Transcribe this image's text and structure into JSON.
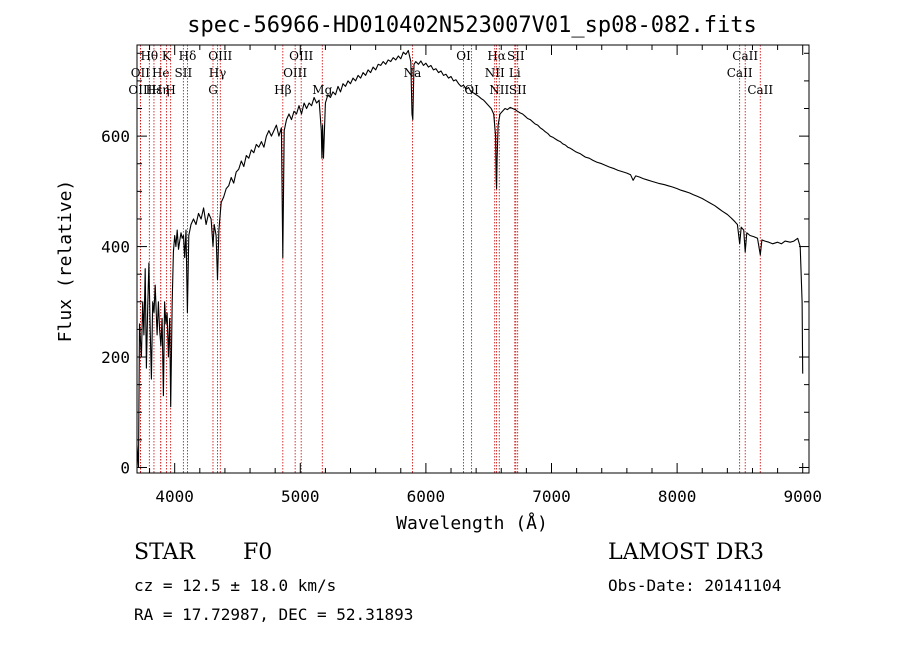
{
  "chart_data": {
    "type": "line",
    "title": "spec-56966-HD010402N523007V01_sp08-082.fits",
    "xlabel": "Wavelength (Å)",
    "ylabel": "Flux (relative)",
    "xlim": [
      3700,
      9050
    ],
    "ylim": [
      -10,
      765
    ],
    "x_ticks": [
      {
        "value": 4000,
        "label": "4000"
      },
      {
        "value": 5000,
        "label": "5000"
      },
      {
        "value": 6000,
        "label": "6000"
      },
      {
        "value": 7000,
        "label": "7000"
      },
      {
        "value": 8000,
        "label": "8000"
      },
      {
        "value": 9000,
        "label": "9000"
      }
    ],
    "y_ticks": [
      {
        "value": 0,
        "label": "0"
      },
      {
        "value": 200,
        "label": "200"
      },
      {
        "value": 400,
        "label": "400"
      },
      {
        "value": 600,
        "label": "600"
      }
    ],
    "grid": false,
    "line_color": "#000000",
    "marker_color": "#cc0000",
    "series": [
      {
        "values": [
          [
            3700,
            40
          ],
          [
            3712,
            0
          ],
          [
            3720,
            260
          ],
          [
            3735,
            200
          ],
          [
            3745,
            300
          ],
          [
            3755,
            240
          ],
          [
            3765,
            360
          ],
          [
            3775,
            180
          ],
          [
            3785,
            290
          ],
          [
            3795,
            370
          ],
          [
            3805,
            250
          ],
          [
            3815,
            160
          ],
          [
            3825,
            300
          ],
          [
            3835,
            280
          ],
          [
            3845,
            330
          ],
          [
            3860,
            240
          ],
          [
            3870,
            300
          ],
          [
            3880,
            250
          ],
          [
            3890,
            220
          ],
          [
            3900,
            270
          ],
          [
            3910,
            130
          ],
          [
            3920,
            300
          ],
          [
            3930,
            260
          ],
          [
            3940,
            280
          ],
          [
            3950,
            200
          ],
          [
            3960,
            270
          ],
          [
            3968,
            110
          ],
          [
            3980,
            300
          ],
          [
            3990,
            390
          ],
          [
            4000,
            420
          ],
          [
            4010,
            400
          ],
          [
            4020,
            430
          ],
          [
            4030,
            395
          ],
          [
            4040,
            410
          ],
          [
            4050,
            425
          ],
          [
            4060,
            415
          ],
          [
            4070,
            420
          ],
          [
            4080,
            380
          ],
          [
            4090,
            430
          ],
          [
            4101,
            280
          ],
          [
            4112,
            420
          ],
          [
            4130,
            440
          ],
          [
            4150,
            450
          ],
          [
            4170,
            440
          ],
          [
            4190,
            460
          ],
          [
            4210,
            450
          ],
          [
            4230,
            470
          ],
          [
            4250,
            440
          ],
          [
            4270,
            460
          ],
          [
            4290,
            450
          ],
          [
            4305,
            400
          ],
          [
            4315,
            440
          ],
          [
            4330,
            420
          ],
          [
            4341,
            340
          ],
          [
            4352,
            430
          ],
          [
            4370,
            480
          ],
          [
            4390,
            490
          ],
          [
            4410,
            505
          ],
          [
            4430,
            510
          ],
          [
            4450,
            525
          ],
          [
            4470,
            515
          ],
          [
            4490,
            535
          ],
          [
            4510,
            540
          ],
          [
            4530,
            555
          ],
          [
            4550,
            545
          ],
          [
            4570,
            565
          ],
          [
            4590,
            560
          ],
          [
            4610,
            575
          ],
          [
            4630,
            570
          ],
          [
            4650,
            585
          ],
          [
            4670,
            580
          ],
          [
            4690,
            590
          ],
          [
            4710,
            580
          ],
          [
            4730,
            600
          ],
          [
            4750,
            610
          ],
          [
            4770,
            600
          ],
          [
            4790,
            610
          ],
          [
            4810,
            620
          ],
          [
            4830,
            600
          ],
          [
            4850,
            615
          ],
          [
            4861,
            380
          ],
          [
            4872,
            610
          ],
          [
            4890,
            630
          ],
          [
            4910,
            640
          ],
          [
            4930,
            630
          ],
          [
            4950,
            645
          ],
          [
            4970,
            640
          ],
          [
            4990,
            655
          ],
          [
            5010,
            640
          ],
          [
            5030,
            660
          ],
          [
            5050,
            650
          ],
          [
            5070,
            660
          ],
          [
            5090,
            655
          ],
          [
            5110,
            670
          ],
          [
            5130,
            660
          ],
          [
            5150,
            665
          ],
          [
            5167,
            610
          ],
          [
            5172,
            560
          ],
          [
            5178,
            620
          ],
          [
            5185,
            560
          ],
          [
            5200,
            660
          ],
          [
            5220,
            675
          ],
          [
            5240,
            670
          ],
          [
            5260,
            680
          ],
          [
            5280,
            675
          ],
          [
            5300,
            690
          ],
          [
            5320,
            680
          ],
          [
            5340,
            695
          ],
          [
            5360,
            690
          ],
          [
            5380,
            700
          ],
          [
            5400,
            695
          ],
          [
            5420,
            705
          ],
          [
            5440,
            700
          ],
          [
            5460,
            710
          ],
          [
            5480,
            705
          ],
          [
            5500,
            715
          ],
          [
            5520,
            710
          ],
          [
            5540,
            720
          ],
          [
            5560,
            715
          ],
          [
            5580,
            725
          ],
          [
            5600,
            720
          ],
          [
            5620,
            730
          ],
          [
            5640,
            728
          ],
          [
            5660,
            735
          ],
          [
            5680,
            730
          ],
          [
            5700,
            738
          ],
          [
            5720,
            735
          ],
          [
            5740,
            742
          ],
          [
            5760,
            738
          ],
          [
            5780,
            745
          ],
          [
            5800,
            740
          ],
          [
            5820,
            752
          ],
          [
            5840,
            748
          ],
          [
            5860,
            755
          ],
          [
            5880,
            735
          ],
          [
            5889,
            640
          ],
          [
            5896,
            630
          ],
          [
            5905,
            730
          ],
          [
            5920,
            735
          ],
          [
            5940,
            730
          ],
          [
            5960,
            736
          ],
          [
            5980,
            728
          ],
          [
            6000,
            732
          ],
          [
            6020,
            725
          ],
          [
            6040,
            728
          ],
          [
            6060,
            720
          ],
          [
            6080,
            722
          ],
          [
            6100,
            715
          ],
          [
            6120,
            718
          ],
          [
            6140,
            710
          ],
          [
            6160,
            712
          ],
          [
            6180,
            705
          ],
          [
            6200,
            708
          ],
          [
            6220,
            700
          ],
          [
            6240,
            702
          ],
          [
            6260,
            695
          ],
          [
            6280,
            690
          ],
          [
            6300,
            692
          ],
          [
            6320,
            685
          ],
          [
            6340,
            688
          ],
          [
            6360,
            680
          ],
          [
            6380,
            678
          ],
          [
            6400,
            675
          ],
          [
            6420,
            672
          ],
          [
            6440,
            668
          ],
          [
            6460,
            665
          ],
          [
            6480,
            660
          ],
          [
            6500,
            655
          ],
          [
            6520,
            650
          ],
          [
            6540,
            640
          ],
          [
            6555,
            600
          ],
          [
            6560,
            520
          ],
          [
            6563,
            505
          ],
          [
            6567,
            560
          ],
          [
            6575,
            620
          ],
          [
            6590,
            640
          ],
          [
            6610,
            645
          ],
          [
            6630,
            650
          ],
          [
            6650,
            648
          ],
          [
            6670,
            652
          ],
          [
            6690,
            650
          ],
          [
            6710,
            648
          ],
          [
            6730,
            645
          ],
          [
            6750,
            642
          ],
          [
            6770,
            640
          ],
          [
            6790,
            636
          ],
          [
            6810,
            632
          ],
          [
            6830,
            630
          ],
          [
            6850,
            626
          ],
          [
            6870,
            622
          ],
          [
            6890,
            620
          ],
          [
            6910,
            615
          ],
          [
            6930,
            612
          ],
          [
            6950,
            608
          ],
          [
            6970,
            605
          ],
          [
            6990,
            600
          ],
          [
            7010,
            598
          ],
          [
            7030,
            595
          ],
          [
            7050,
            592
          ],
          [
            7070,
            590
          ],
          [
            7090,
            586
          ],
          [
            7110,
            584
          ],
          [
            7130,
            580
          ],
          [
            7150,
            578
          ],
          [
            7170,
            575
          ],
          [
            7190,
            572
          ],
          [
            7210,
            570
          ],
          [
            7230,
            568
          ],
          [
            7250,
            565
          ],
          [
            7270,
            562
          ],
          [
            7300,
            560
          ],
          [
            7330,
            556
          ],
          [
            7360,
            553
          ],
          [
            7400,
            550
          ],
          [
            7430,
            547
          ],
          [
            7460,
            544
          ],
          [
            7500,
            541
          ],
          [
            7530,
            538
          ],
          [
            7560,
            536
          ],
          [
            7600,
            533
          ],
          [
            7630,
            530
          ],
          [
            7650,
            520
          ],
          [
            7670,
            528
          ],
          [
            7700,
            526
          ],
          [
            7730,
            523
          ],
          [
            7760,
            521
          ],
          [
            7800,
            518
          ],
          [
            7830,
            516
          ],
          [
            7860,
            514
          ],
          [
            7900,
            512
          ],
          [
            7930,
            510
          ],
          [
            7960,
            508
          ],
          [
            8000,
            505
          ],
          [
            8030,
            502
          ],
          [
            8060,
            500
          ],
          [
            8100,
            497
          ],
          [
            8130,
            494
          ],
          [
            8160,
            491
          ],
          [
            8200,
            487
          ],
          [
            8230,
            483
          ],
          [
            8260,
            479
          ],
          [
            8300,
            474
          ],
          [
            8330,
            469
          ],
          [
            8360,
            464
          ],
          [
            8400,
            458
          ],
          [
            8430,
            452
          ],
          [
            8460,
            445
          ],
          [
            8480,
            440
          ],
          [
            8498,
            405
          ],
          [
            8510,
            435
          ],
          [
            8530,
            430
          ],
          [
            8542,
            390
          ],
          [
            8555,
            425
          ],
          [
            8580,
            420
          ],
          [
            8610,
            418
          ],
          [
            8640,
            415
          ],
          [
            8662,
            385
          ],
          [
            8675,
            412
          ],
          [
            8700,
            410
          ],
          [
            8730,
            408
          ],
          [
            8760,
            405
          ],
          [
            8800,
            408
          ],
          [
            8830,
            405
          ],
          [
            8860,
            410
          ],
          [
            8900,
            408
          ],
          [
            8930,
            410
          ],
          [
            8960,
            415
          ],
          [
            8980,
            400
          ],
          [
            8995,
            300
          ],
          [
            9000,
            170
          ]
        ]
      }
    ],
    "line_markers": [
      {
        "label": "Hθ",
        "x": 3798,
        "row": 0
      },
      {
        "label": "OII",
        "x": 3727,
        "row": 1
      },
      {
        "label": "OIII",
        "x": 3727,
        "row": 2
      },
      {
        "label": "Hε",
        "x": 3835,
        "row": 2
      },
      {
        "label": "He",
        "x": 3889,
        "row": 1
      },
      {
        "label": "K",
        "x": 3934,
        "row": 0
      },
      {
        "label": "Hη",
        "x": 3889,
        "row": 2
      },
      {
        "label": "SII",
        "x": 4069,
        "row": 1
      },
      {
        "label": "H",
        "x": 3968,
        "row": 2
      },
      {
        "label": "Hδ",
        "x": 4102,
        "row": 0
      },
      {
        "label": "OIII",
        "x": 4363,
        "row": 0
      },
      {
        "label": "Hγ",
        "x": 4341,
        "row": 1
      },
      {
        "label": "G",
        "x": 4305,
        "row": 2
      },
      {
        "label": "Hβ",
        "x": 4861,
        "row": 2
      },
      {
        "label": "OIII",
        "x": 5007,
        "row": 0
      },
      {
        "label": "OIII",
        "x": 4959,
        "row": 1
      },
      {
        "label": "Mg",
        "x": 5175,
        "row": 2
      },
      {
        "label": "Na",
        "x": 5893,
        "row": 1
      },
      {
        "label": "OI",
        "x": 6300,
        "row": 0
      },
      {
        "label": "OI",
        "x": 6364,
        "row": 2
      },
      {
        "label": "Hα",
        "x": 6563,
        "row": 0
      },
      {
        "label": "SII",
        "x": 6716,
        "row": 0
      },
      {
        "label": "NII",
        "x": 6548,
        "row": 1
      },
      {
        "label": "Li",
        "x": 6708,
        "row": 1
      },
      {
        "label": "NII",
        "x": 6584,
        "row": 2
      },
      {
        "label": "SII",
        "x": 6731,
        "row": 2
      },
      {
        "label": "CaII",
        "x": 8542,
        "row": 0
      },
      {
        "label": "CaII",
        "x": 8498,
        "row": 1
      },
      {
        "label": "CaII",
        "x": 8662,
        "row": 2
      }
    ]
  },
  "info": {
    "class_label": "STAR",
    "subclass": "F0",
    "redshift": "cz = 12.5 ± 18.0 km/s",
    "coords": "RA =  17.72987, DEC =  52.31893",
    "survey": "LAMOST DR3",
    "obs_date": "Obs-Date: 20141104"
  }
}
